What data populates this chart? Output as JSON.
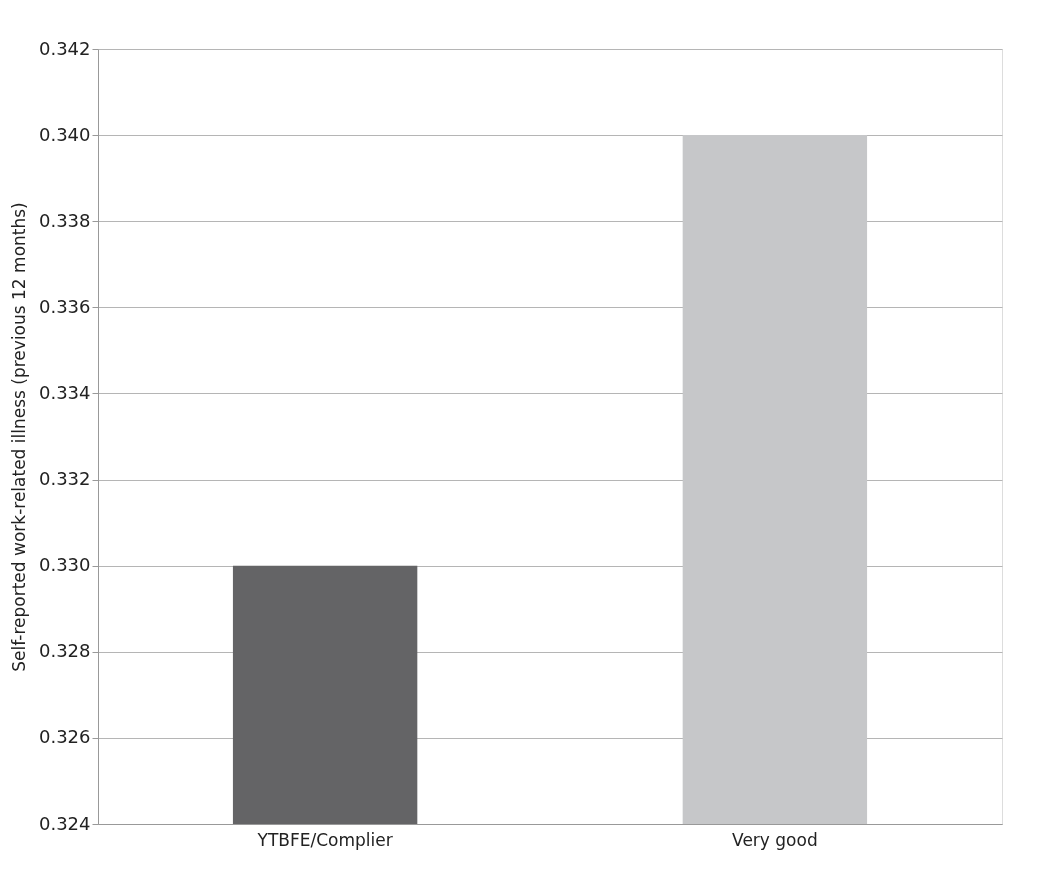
{
  "chart_data": {
    "type": "bar",
    "ylabel": "Self-reported work-related illness (previous 12 months)",
    "categories": [
      "YTBFE/Complier",
      "Very good"
    ],
    "values": [
      0.33,
      0.34
    ],
    "colors": [
      "#646466",
      "#c6c7c9"
    ],
    "ylim": [
      0.324,
      0.342
    ],
    "yticks": [
      {
        "value": 0.324,
        "label": "0.324"
      },
      {
        "value": 0.326,
        "label": "0.326"
      },
      {
        "value": 0.328,
        "label": "0.328"
      },
      {
        "value": 0.33,
        "label": "0.330"
      },
      {
        "value": 0.332,
        "label": "0.332"
      },
      {
        "value": 0.334,
        "label": "0.334"
      },
      {
        "value": 0.336,
        "label": "0.336"
      },
      {
        "value": 0.338,
        "label": "0.338"
      },
      {
        "value": 0.34,
        "label": "0.340"
      },
      {
        "value": 0.342,
        "label": "0.342"
      }
    ],
    "grid": "y",
    "legend": false
  }
}
